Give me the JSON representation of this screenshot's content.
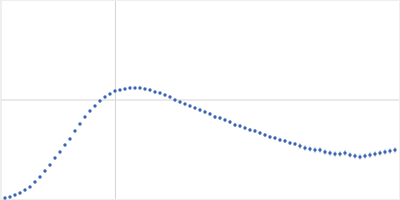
{
  "chart_data": {
    "type": "scatter",
    "x": [
      0.075,
      0.15,
      0.225,
      0.3,
      0.375,
      0.45,
      0.525,
      0.6,
      0.675,
      0.75,
      0.825,
      0.9,
      0.975,
      1.05,
      1.125,
      1.2,
      1.275,
      1.35,
      1.425,
      1.5,
      1.575,
      1.65,
      1.725,
      1.8,
      1.875,
      1.95,
      2.025,
      2.1,
      2.175,
      2.25,
      2.325,
      2.4,
      2.475,
      2.55,
      2.625,
      2.7,
      2.775,
      2.85,
      2.925,
      3.0,
      3.075,
      3.15,
      3.225,
      3.3,
      3.375,
      3.45,
      3.525,
      3.6,
      3.675,
      3.75,
      3.825,
      3.9,
      3.975,
      4.05,
      4.125,
      4.2,
      4.275,
      4.35,
      4.425,
      4.5,
      4.575,
      4.65,
      4.725,
      4.8,
      4.875,
      4.95,
      5.025,
      5.1,
      5.175,
      5.25,
      5.325,
      5.4,
      5.475,
      5.55,
      5.625,
      5.7,
      5.775,
      5.85,
      5.925
    ],
    "series": [
      {
        "color": "#3a64b4",
        "marker": "circle",
        "values": [
          0.022,
          0.033,
          0.055,
          0.077,
          0.11,
          0.143,
          0.198,
          0.253,
          0.319,
          0.385,
          0.462,
          0.528,
          0.605,
          0.671,
          0.759,
          0.836,
          0.913,
          0.979,
          1.034,
          1.089,
          1.133,
          1.166,
          1.199,
          1.21,
          1.221,
          1.232,
          1.232,
          1.232,
          1.221,
          1.21,
          1.188,
          1.177,
          1.155,
          1.133,
          1.1,
          1.078,
          1.056,
          1.034,
          1.012,
          0.99,
          0.968,
          0.946,
          0.913,
          0.902,
          0.88,
          0.858,
          0.825,
          0.814,
          0.792,
          0.77,
          0.759,
          0.737,
          0.715,
          0.693,
          0.682,
          0.66,
          0.649,
          0.627,
          0.616,
          0.594,
          0.572,
          0.561,
          0.55,
          0.55,
          0.528,
          0.517,
          0.506,
          0.506,
          0.517,
          0.495,
          0.484,
          0.473,
          0.484,
          0.495,
          0.506,
          0.517,
          0.528,
          0.539,
          0.55
        ],
        "errors": [
          0.005,
          0.005,
          0.005,
          0.005,
          0.005,
          0.005,
          0.005,
          0.005,
          0.005,
          0.005,
          0.005,
          0.005,
          0.005,
          0.005,
          0.005,
          0.005,
          0.005,
          0.005,
          0.005,
          0.01,
          0.01,
          0.01,
          0.01,
          0.01,
          0.01,
          0.01,
          0.01,
          0.01,
          0.01,
          0.01,
          0.01,
          0.01,
          0.01,
          0.01,
          0.01,
          0.01,
          0.01,
          0.01,
          0.01,
          0.02,
          0.02,
          0.02,
          0.02,
          0.02,
          0.02,
          0.02,
          0.02,
          0.02,
          0.02,
          0.02,
          0.02,
          0.02,
          0.02,
          0.02,
          0.02,
          0.02,
          0.02,
          0.02,
          0.02,
          0.035,
          0.035,
          0.035,
          0.035,
          0.035,
          0.035,
          0.035,
          0.035,
          0.035,
          0.035,
          0.035,
          0.035,
          0.035,
          0.035,
          0.035,
          0.035,
          0.035,
          0.035,
          0.035,
          0.035
        ]
      }
    ],
    "xlim": [
      0,
      6
    ],
    "ylim": [
      0,
      2.2
    ],
    "xticks": [
      1.732
    ],
    "yticks": [
      1.1
    ],
    "grid": true,
    "tick_labels": false
  }
}
